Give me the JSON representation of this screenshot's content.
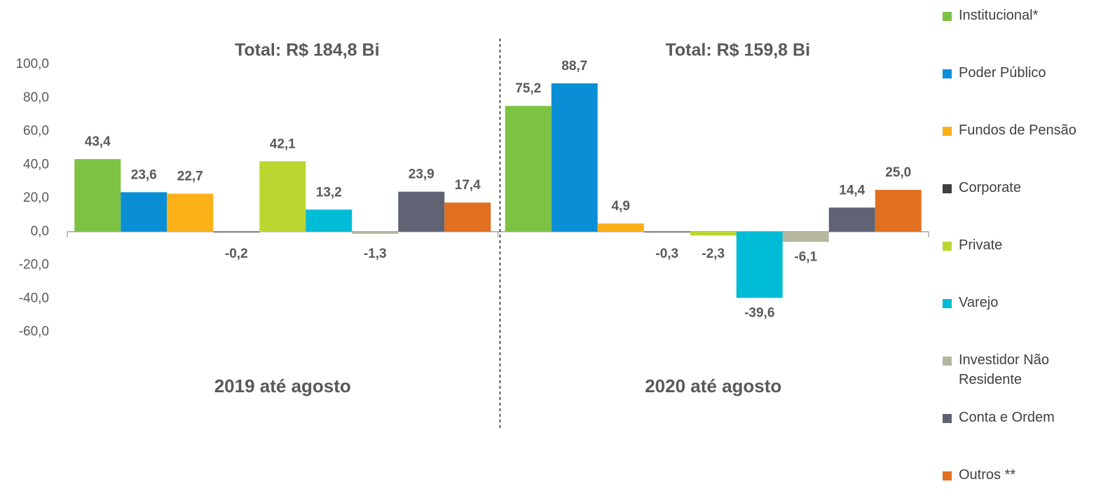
{
  "chart_data": {
    "type": "bar",
    "categories": [
      "2019 até agosto",
      "2020 até agosto"
    ],
    "group_totals": [
      "Total: R$ 184,8 Bi",
      "Total: R$ 159,8 Bi"
    ],
    "series": [
      {
        "name": "Institucional*",
        "color": "#7dc242",
        "values": [
          43.4,
          75.2
        ],
        "value_labels": [
          "43,4",
          "75,2"
        ]
      },
      {
        "name": "Poder Público",
        "color": "#0a8fd6",
        "values": [
          23.6,
          88.7
        ],
        "value_labels": [
          "23,6",
          "88,7"
        ]
      },
      {
        "name": "Fundos de Pensão",
        "color": "#fbb017",
        "values": [
          22.7,
          4.9
        ],
        "value_labels": [
          "22,7",
          "4,9"
        ]
      },
      {
        "name": "Corporate",
        "color": "#404040",
        "values": [
          -0.2,
          -0.3
        ],
        "value_labels": [
          "-0,2",
          "-0,3"
        ]
      },
      {
        "name": "Private",
        "color": "#bcd631",
        "values": [
          42.1,
          -2.3
        ],
        "value_labels": [
          "42,1",
          "-2,3"
        ]
      },
      {
        "name": "Varejo",
        "color": "#00bcd6",
        "values": [
          13.2,
          -39.6
        ],
        "value_labels": [
          "13,2",
          "-39,6"
        ]
      },
      {
        "name": "Investidor Não Residente",
        "color": "#b5b89e",
        "values": [
          -1.3,
          -6.1
        ],
        "value_labels": [
          "-1,3",
          "-6,1"
        ]
      },
      {
        "name": "Conta e Ordem",
        "color": "#5f6373",
        "values": [
          23.9,
          14.4
        ],
        "value_labels": [
          "23,9",
          "14,4"
        ]
      },
      {
        "name": "Outros **",
        "color": "#e07020",
        "values": [
          17.4,
          25.0
        ],
        "value_labels": [
          "17,4",
          "25,0"
        ]
      }
    ],
    "ylim": [
      -60,
      100
    ],
    "yticks": [
      {
        "value": -60,
        "label": "-60,0"
      },
      {
        "value": -40,
        "label": "-40,0"
      },
      {
        "value": -20,
        "label": "-20,0"
      },
      {
        "value": 0,
        "label": "0,0"
      },
      {
        "value": 20,
        "label": "20,0"
      },
      {
        "value": 40,
        "label": "40,0"
      },
      {
        "value": 60,
        "label": "60,0"
      },
      {
        "value": 80,
        "label": "80,0"
      },
      {
        "value": 100,
        "label": "100,0"
      }
    ],
    "grid": false,
    "legend": "right"
  }
}
